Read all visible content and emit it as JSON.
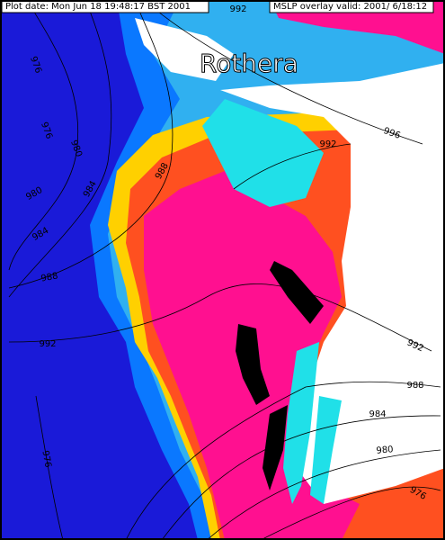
{
  "header": {
    "plot_date": "Plot date: Mon Jun 18 19:48:17 BST 2001",
    "overlay": "MSLP overlay valid: 2001/ 6/18:12"
  },
  "place_name": "Rothera",
  "contour_labels": [
    "992",
    "976",
    "996",
    "976",
    "980",
    "992",
    "980",
    "984",
    "988",
    "984",
    "988",
    "992",
    "992",
    "988",
    "984",
    "980",
    "976",
    "976"
  ]
}
